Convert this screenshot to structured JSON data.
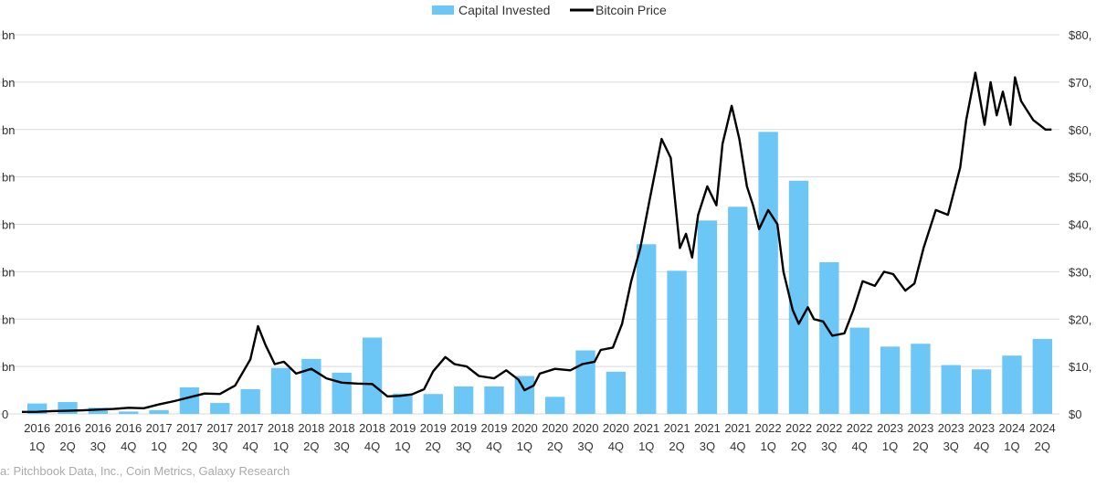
{
  "source_note": "a: Pitchbook Data, Inc., Coin Metrics, Galaxy Research",
  "chart_data": {
    "type": "bar",
    "legend": {
      "position": "top-center",
      "items": [
        "Capital Invested",
        "Bitcoin Price"
      ]
    },
    "grid": true,
    "colors": {
      "bar": "#6CC7F6",
      "line": "#000000",
      "grid": "#d9d9d9"
    },
    "categories": [
      [
        "2016",
        "1Q"
      ],
      [
        "2016",
        "2Q"
      ],
      [
        "2016",
        "3Q"
      ],
      [
        "2016",
        "4Q"
      ],
      [
        "2017",
        "1Q"
      ],
      [
        "2017",
        "2Q"
      ],
      [
        "2017",
        "3Q"
      ],
      [
        "2017",
        "4Q"
      ],
      [
        "2018",
        "1Q"
      ],
      [
        "2018",
        "2Q"
      ],
      [
        "2018",
        "3Q"
      ],
      [
        "2018",
        "4Q"
      ],
      [
        "2019",
        "1Q"
      ],
      [
        "2019",
        "2Q"
      ],
      [
        "2019",
        "3Q"
      ],
      [
        "2019",
        "4Q"
      ],
      [
        "2020",
        "1Q"
      ],
      [
        "2020",
        "2Q"
      ],
      [
        "2020",
        "3Q"
      ],
      [
        "2020",
        "4Q"
      ],
      [
        "2021",
        "1Q"
      ],
      [
        "2021",
        "2Q"
      ],
      [
        "2021",
        "3Q"
      ],
      [
        "2021",
        "4Q"
      ],
      [
        "2022",
        "1Q"
      ],
      [
        "2022",
        "2Q"
      ],
      [
        "2022",
        "3Q"
      ],
      [
        "2022",
        "4Q"
      ],
      [
        "2023",
        "1Q"
      ],
      [
        "2023",
        "2Q"
      ],
      [
        "2023",
        "3Q"
      ],
      [
        "2023",
        "4Q"
      ],
      [
        "2024",
        "1Q"
      ],
      [
        "2024",
        "2Q"
      ]
    ],
    "y_left": {
      "ylim": [
        0,
        8
      ],
      "ticks": [
        0,
        1,
        2,
        3,
        4,
        5,
        6,
        7,
        8
      ],
      "tick_labels": [
        "0",
        "bn",
        "bn",
        "bn",
        "bn",
        "bn",
        "bn",
        "bn",
        "bn"
      ]
    },
    "y_right": {
      "ylim": [
        0,
        80000
      ],
      "ticks": [
        0,
        10000,
        20000,
        30000,
        40000,
        50000,
        60000,
        70000,
        80000
      ],
      "tick_labels": [
        "$0",
        "$10,",
        "$20,",
        "$30,",
        "$40,",
        "$50,",
        "$60,",
        "$70,",
        "$80,"
      ]
    },
    "series": [
      {
        "name": "Capital Invested",
        "type": "bar",
        "axis": "left",
        "values": [
          0.22,
          0.25,
          0.13,
          0.05,
          0.08,
          0.56,
          0.23,
          0.52,
          0.97,
          1.16,
          0.87,
          1.61,
          0.43,
          0.42,
          0.58,
          0.58,
          0.8,
          0.36,
          1.34,
          0.89,
          3.58,
          3.02,
          4.08,
          4.37,
          5.95,
          4.92,
          3.2,
          1.82,
          1.42,
          1.48,
          1.03,
          0.94,
          1.23,
          1.58
        ]
      },
      {
        "name": "Bitcoin Price",
        "type": "line",
        "axis": "right",
        "x": [
          0.0,
          0.5,
          1.0,
          1.5,
          2.0,
          2.5,
          3.0,
          3.5,
          4.0,
          4.5,
          5.0,
          5.5,
          6.0,
          6.5,
          7.0,
          7.5,
          7.75,
          8.0,
          8.3,
          8.6,
          9.0,
          9.5,
          10.0,
          10.5,
          11.0,
          11.5,
          12.0,
          12.4,
          12.8,
          13.2,
          13.5,
          13.9,
          14.2,
          14.6,
          15.0,
          15.5,
          15.9,
          16.3,
          16.5,
          16.8,
          17.0,
          17.5,
          18.0,
          18.4,
          18.8,
          19.0,
          19.4,
          19.7,
          20.0,
          20.3,
          20.6,
          21.0,
          21.3,
          21.6,
          21.8,
          22.0,
          22.2,
          22.5,
          22.8,
          23.0,
          23.3,
          23.55,
          23.8,
          24.0,
          24.2,
          24.5,
          24.8,
          25.0,
          25.3,
          25.5,
          25.8,
          26.0,
          26.3,
          26.6,
          27.0,
          27.3,
          27.6,
          28.0,
          28.3,
          28.6,
          29.0,
          29.3,
          29.6,
          30.0,
          30.4,
          30.8,
          31.0,
          31.3,
          31.6,
          31.8,
          32.0,
          32.2,
          32.45,
          32.6,
          32.8,
          33.0,
          33.2,
          33.4,
          33.6,
          33.8
        ],
        "values": [
          430,
          450,
          600,
          650,
          760,
          900,
          1050,
          1300,
          1200,
          2000,
          2700,
          3500,
          4300,
          4200,
          6000,
          11500,
          18500,
          14500,
          10500,
          11000,
          8500,
          9500,
          7500,
          6600,
          6400,
          6300,
          3700,
          3800,
          4100,
          5200,
          9000,
          12000,
          10500,
          10000,
          8000,
          7500,
          9200,
          7200,
          5000,
          6000,
          8500,
          9500,
          9200,
          10500,
          11000,
          13500,
          14000,
          19000,
          28000,
          35000,
          45000,
          58000,
          54000,
          35000,
          38000,
          33000,
          42000,
          48000,
          44000,
          57000,
          65000,
          58000,
          48000,
          44000,
          39000,
          43000,
          40000,
          30000,
          22000,
          19000,
          22500,
          20000,
          19500,
          16500,
          17000,
          22000,
          28000,
          27000,
          30000,
          29500,
          26000,
          27500,
          35000,
          43000,
          42000,
          52000,
          62000,
          72000,
          61000,
          70000,
          63000,
          68000,
          61000,
          71000,
          66000,
          64000,
          62000,
          61000,
          60000,
          60000
        ]
      }
    ]
  }
}
